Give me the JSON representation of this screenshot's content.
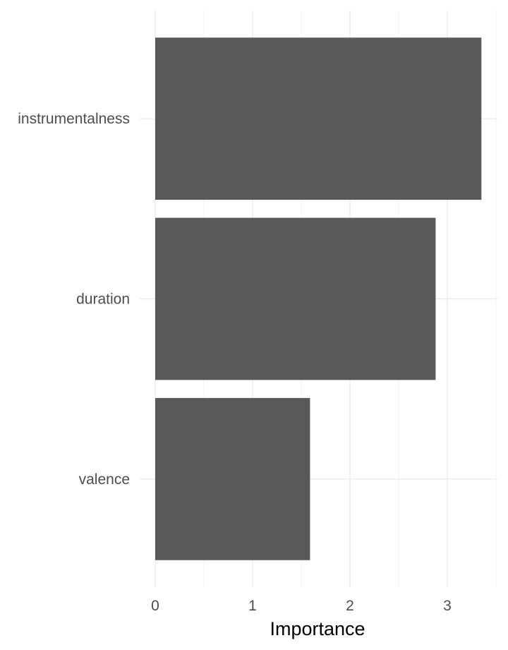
{
  "chart_data": {
    "type": "bar",
    "orientation": "horizontal",
    "categories": [
      "instrumentalness",
      "duration",
      "valence"
    ],
    "values": [
      3.35,
      2.88,
      1.59
    ],
    "xlabel": "Importance",
    "ylabel": "",
    "title": "",
    "xlim": [
      0,
      3.52
    ],
    "xticks": [
      0,
      1,
      2,
      3
    ],
    "xtick_labels": [
      "0",
      "1",
      "2",
      "3"
    ],
    "grid": true,
    "legend": "none",
    "bar_color": "#595959"
  }
}
